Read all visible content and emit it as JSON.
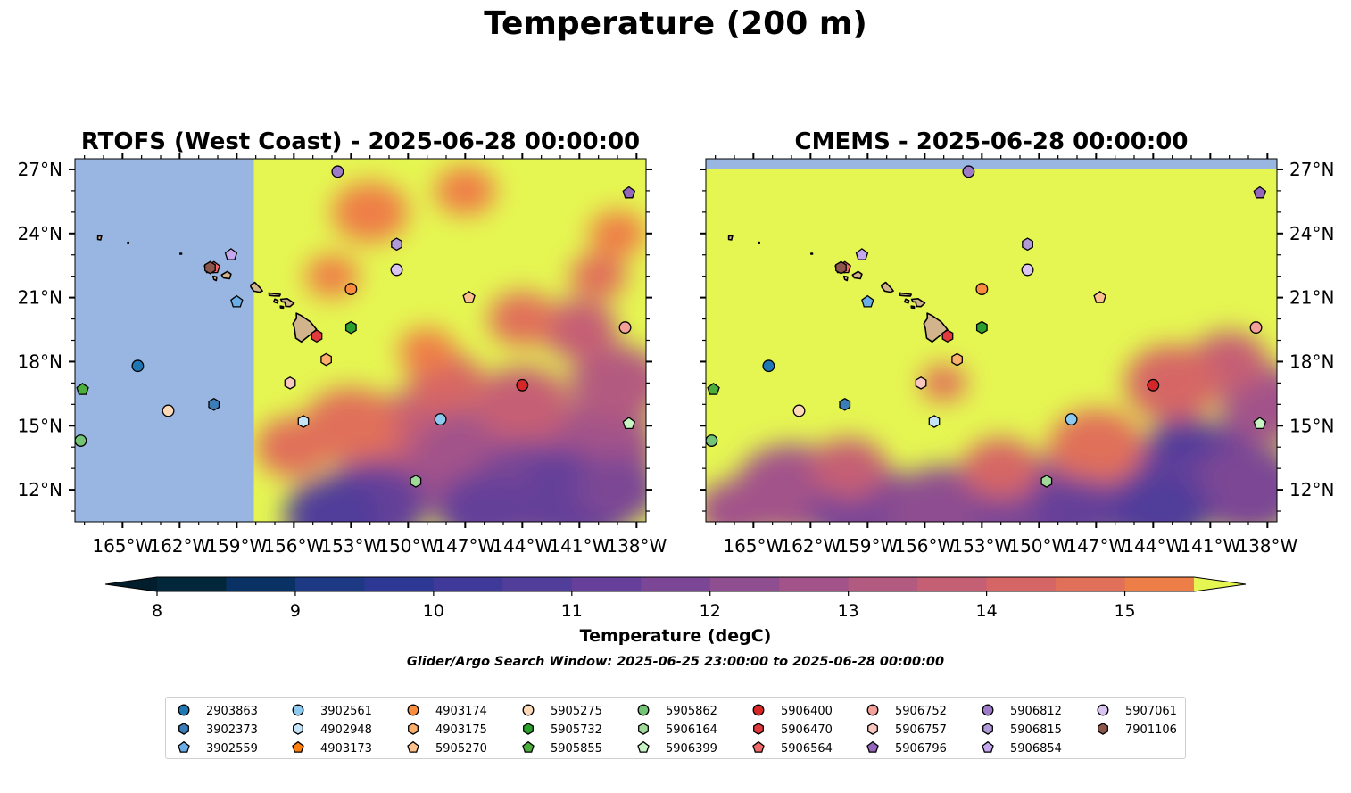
{
  "figure": {
    "suptitle": "Temperature (200 m)",
    "search_window": "Glider/Argo Search Window: 2025-06-25 23:00:00 to 2025-06-28 00:00:00"
  },
  "colors": {
    "land": "#d2b48c",
    "ocean_nodata": "#98b6e1",
    "float_outline": "#000000"
  },
  "chart_data": [
    {
      "type": "heatmap",
      "title": "RTOFS (West Coast) - 2025-06-28 00:00:00",
      "xlim": [
        -167.5,
        -137.5
      ],
      "ylim": [
        10.5,
        27.5
      ],
      "x_ticks": [
        -165,
        -162,
        -159,
        -156,
        -153,
        -150,
        -147,
        -144,
        -141,
        -138
      ],
      "x_tick_labels": [
        "165°W",
        "162°W",
        "159°W",
        "156°W",
        "153°W",
        "150°W",
        "147°W",
        "144°W",
        "141°W",
        "138°W"
      ],
      "y_ticks": [
        12,
        15,
        18,
        21,
        24,
        27
      ],
      "y_tick_labels": [
        "12°N",
        "15°N",
        "18°N",
        "21°N",
        "24°N",
        "27°N"
      ],
      "y_labels_side": "left",
      "no_data_west_of": -158.1,
      "field": "temperature at 200 m (degC)",
      "warm_pool_value": 15.6,
      "cool_region": "south-east, down to about 10.5 degC"
    },
    {
      "type": "heatmap",
      "title": "CMEMS - 2025-06-28 00:00:00",
      "xlim": [
        -167.5,
        -137.5
      ],
      "ylim": [
        10.5,
        27.5
      ],
      "x_ticks": [
        -165,
        -162,
        -159,
        -156,
        -153,
        -150,
        -147,
        -144,
        -141,
        -138
      ],
      "x_tick_labels": [
        "165°W",
        "162°W",
        "159°W",
        "156°W",
        "153°W",
        "150°W",
        "147°W",
        "144°W",
        "141°W",
        "138°W"
      ],
      "y_ticks": [
        12,
        15,
        18,
        21,
        24,
        27
      ],
      "y_tick_labels": [
        "12°N",
        "15°N",
        "18°N",
        "21°N",
        "24°N",
        "27°N"
      ],
      "y_labels_side": "right",
      "no_data_north_of": 27.0,
      "field": "temperature at 200 m (degC)",
      "warm_pool_value": 15.6,
      "cool_region": "south, down to about 10.5 degC"
    }
  ],
  "colorbar": {
    "label": "Temperature (degC)",
    "min": 8,
    "max": 15.5,
    "step": 0.5,
    "extend": "both",
    "ticks": [
      8,
      9,
      10,
      11,
      12,
      13,
      14,
      15
    ],
    "tick_labels": [
      "8",
      "9",
      "10",
      "11",
      "12",
      "13",
      "14",
      "15"
    ],
    "colors": [
      "#02263a",
      "#0a3164",
      "#1d3984",
      "#2d3894",
      "#3f3a99",
      "#513e9a",
      "#653f99",
      "#7b4695",
      "#8e4e90",
      "#a2538a",
      "#b35a80",
      "#c55f74",
      "#d56665",
      "#e0705a",
      "#ee7e47",
      "#f58a39",
      "#fba333",
      "#fbb737",
      "#f6cc46",
      "#e9f15a"
    ],
    "under_color": "#021e2c",
    "over_color": "#e5f652"
  },
  "floats": [
    {
      "id": "2903863",
      "marker": "circle",
      "color": "#1f77b4",
      "lon": -164.2,
      "lat": 17.8
    },
    {
      "id": "3902373",
      "marker": "hexagon",
      "color": "#3b7db8",
      "lon": -160.2,
      "lat": 16.0
    },
    {
      "id": "3902559",
      "marker": "pentagon",
      "color": "#69aee6",
      "lon": -159.0,
      "lat": 20.8
    },
    {
      "id": "3902561",
      "marker": "circle",
      "color": "#8ccaf0",
      "lon": -148.3,
      "lat": 15.3
    },
    {
      "id": "4902948",
      "marker": "hexagon",
      "color": "#c6e4f8",
      "lon": -155.5,
      "lat": 15.2
    },
    {
      "id": "4903173",
      "marker": "pentagon",
      "color": "#ff7f0e",
      "lon": -160.4,
      "lat": 22.4
    },
    {
      "id": "4903174",
      "marker": "circle",
      "color": "#fd8d3c",
      "lon": -153.0,
      "lat": 21.4
    },
    {
      "id": "4903175",
      "marker": "hexagon",
      "color": "#fdb06b",
      "lon": -154.3,
      "lat": 18.1
    },
    {
      "id": "5905270",
      "marker": "pentagon",
      "color": "#fdc18d",
      "lon": -146.8,
      "lat": 21.0
    },
    {
      "id": "5905275",
      "marker": "circle",
      "color": "#fdd9b8",
      "lon": -162.6,
      "lat": 15.7
    },
    {
      "id": "5905732",
      "marker": "hexagon",
      "color": "#2ca02c",
      "lon": -153.0,
      "lat": 19.6
    },
    {
      "id": "5905855",
      "marker": "pentagon",
      "color": "#4caf3c",
      "lon": -167.1,
      "lat": 16.7
    },
    {
      "id": "5905862",
      "marker": "circle",
      "color": "#74c476",
      "lon": -167.2,
      "lat": 14.3
    },
    {
      "id": "5906164",
      "marker": "hexagon",
      "color": "#a1d99b",
      "lon": -149.6,
      "lat": 12.4
    },
    {
      "id": "5906399",
      "marker": "pentagon",
      "color": "#c7f5c4",
      "lon": -138.4,
      "lat": 15.1
    },
    {
      "id": "5906400",
      "marker": "circle",
      "color": "#d62728",
      "lon": -144.0,
      "lat": 16.9
    },
    {
      "id": "5906470",
      "marker": "hexagon",
      "color": "#e03a3e",
      "lon": -154.8,
      "lat": 19.2
    },
    {
      "id": "5906564",
      "marker": "pentagon",
      "color": "#f06a6a",
      "lon": -160.2,
      "lat": 22.4
    },
    {
      "id": "5906752",
      "marker": "circle",
      "color": "#f4a09a",
      "lon": -138.6,
      "lat": 19.6
    },
    {
      "id": "5906757",
      "marker": "hexagon",
      "color": "#f9c6c0",
      "lon": -156.2,
      "lat": 17.0
    },
    {
      "id": "5906796",
      "marker": "pentagon",
      "color": "#9467bd",
      "lon": -138.4,
      "lat": 25.9
    },
    {
      "id": "5906812",
      "marker": "circle",
      "color": "#9e7bc9",
      "lon": -153.7,
      "lat": 26.9
    },
    {
      "id": "5906815",
      "marker": "hexagon",
      "color": "#b09ad8",
      "lon": -150.6,
      "lat": 23.5
    },
    {
      "id": "5906854",
      "marker": "pentagon",
      "color": "#c5a8f0",
      "lon": -159.3,
      "lat": 23.0
    },
    {
      "id": "5907061",
      "marker": "circle",
      "color": "#d9c4f2",
      "lon": -150.6,
      "lat": 22.3
    },
    {
      "id": "7901106",
      "marker": "hexagon",
      "color": "#8c564b",
      "lon": -160.4,
      "lat": 22.4
    }
  ],
  "legend_order": [
    "2903863",
    "3902373",
    "3902559",
    "3902561",
    "4902948",
    "4903173",
    "4903174",
    "4903175",
    "5905270",
    "5905275",
    "5905732",
    "5905855",
    "5905862",
    "5906164",
    "5906399",
    "5906400",
    "5906470",
    "5906564",
    "5906752",
    "5906757",
    "5906796",
    "5906812",
    "5906815",
    "5906854",
    "5907061",
    "7901106"
  ]
}
